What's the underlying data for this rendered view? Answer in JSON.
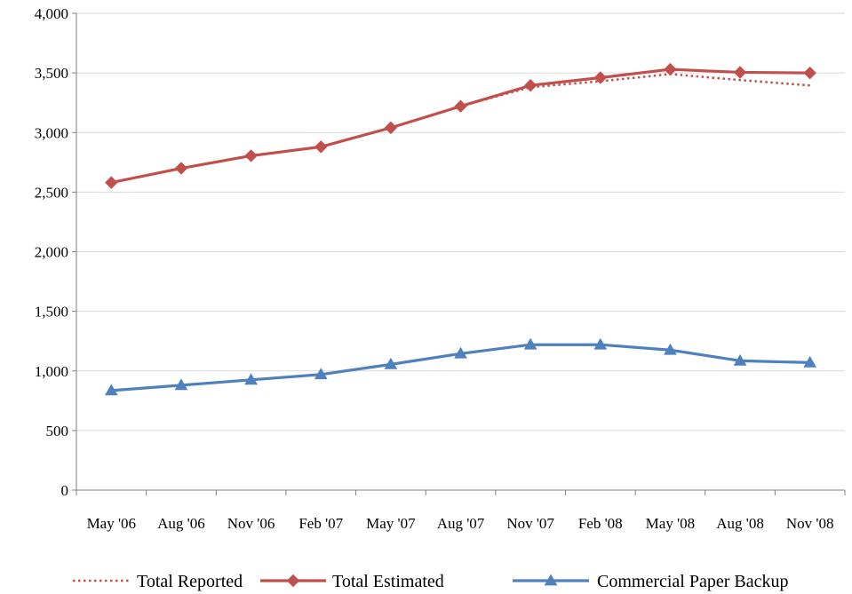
{
  "chart_data": {
    "type": "line",
    "categories": [
      "May '06",
      "Aug '06",
      "Nov '06",
      "Feb '07",
      "May '07",
      "Aug '07",
      "Nov '07",
      "Feb '08",
      "May '08",
      "Aug '08",
      "Nov '08"
    ],
    "ylim": [
      0,
      4000
    ],
    "yticks": [
      0,
      500,
      1000,
      1500,
      2000,
      2500,
      3000,
      3500,
      4000
    ],
    "ytick_labels": [
      "0",
      "500",
      "1,000",
      "1,500",
      "2,000",
      "2,500",
      "3,000",
      "3,500",
      "4,000"
    ],
    "grid": true,
    "legend_position": "bottom",
    "series": [
      {
        "name": "Total Reported",
        "color": "#C0504D",
        "style": "dotted",
        "marker": "none",
        "values": [
          2580,
          2700,
          2805,
          2880,
          3040,
          3220,
          3380,
          3430,
          3490,
          3440,
          3395
        ]
      },
      {
        "name": "Total Estimated",
        "color": "#C0504D",
        "style": "solid",
        "marker": "diamond",
        "values": [
          2580,
          2700,
          2805,
          2880,
          3040,
          3220,
          3395,
          3460,
          3530,
          3505,
          3500
        ]
      },
      {
        "name": "Commercial  Paper Backup",
        "color": "#4F81BD",
        "style": "solid",
        "marker": "triangle",
        "values": [
          835,
          880,
          925,
          970,
          1055,
          1145,
          1220,
          1220,
          1175,
          1085,
          1070
        ]
      }
    ]
  }
}
